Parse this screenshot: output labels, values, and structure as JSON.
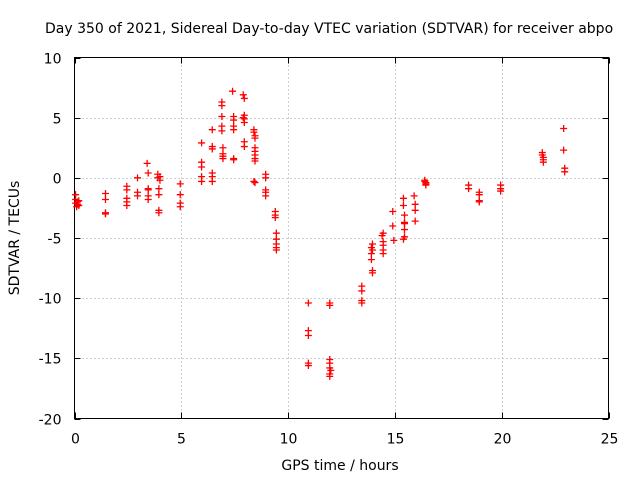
{
  "chart_data": {
    "type": "scatter",
    "title": "Day 350 of 2021, Sidereal Day-to-day VTEC variation (SDTVAR) for receiver abpo",
    "xlabel": "GPS time / hours",
    "ylabel": "SDTVAR / TECUs",
    "xlim": [
      0,
      25
    ],
    "ylim": [
      -20,
      10
    ],
    "xticks": [
      0,
      5,
      10,
      15,
      20,
      25
    ],
    "yticks": [
      -20,
      -15,
      -10,
      -5,
      0,
      5,
      10
    ],
    "xtick_labels": [
      "0",
      "5",
      "10",
      "15",
      "20",
      "25"
    ],
    "ytick_labels": [
      "-20",
      "-15",
      "-10",
      "-5",
      "0",
      "5",
      "10"
    ],
    "grid": true,
    "marker": "+",
    "marker_color": "#ff0000",
    "series": [
      {
        "name": "SDTVAR",
        "points": [
          [
            0.05,
            -1.4
          ],
          [
            0.05,
            -1.8
          ],
          [
            0.05,
            -2.1
          ],
          [
            0.1,
            -2.4
          ],
          [
            0.15,
            -2.0
          ],
          [
            0.15,
            -2.2
          ],
          [
            0.2,
            -1.9
          ],
          [
            0.2,
            -2.3
          ],
          [
            1.45,
            -1.3
          ],
          [
            1.45,
            -1.8
          ],
          [
            1.45,
            -2.9
          ],
          [
            1.45,
            -3.0
          ],
          [
            2.45,
            -0.7
          ],
          [
            2.45,
            -1.0
          ],
          [
            2.45,
            -1.7
          ],
          [
            2.45,
            -2.0
          ],
          [
            2.45,
            -2.3
          ],
          [
            2.95,
            0.0
          ],
          [
            2.95,
            -1.2
          ],
          [
            2.95,
            -1.5
          ],
          [
            3.4,
            1.2
          ],
          [
            3.45,
            0.4
          ],
          [
            3.45,
            -0.9
          ],
          [
            3.45,
            -1.0
          ],
          [
            3.45,
            -1.5
          ],
          [
            3.45,
            -1.8
          ],
          [
            3.9,
            0.3
          ],
          [
            3.9,
            0.0
          ],
          [
            3.95,
            -0.9
          ],
          [
            3.95,
            -1.4
          ],
          [
            3.95,
            -2.7
          ],
          [
            3.95,
            -2.9
          ],
          [
            4.0,
            0.1
          ],
          [
            4.0,
            -0.2
          ],
          [
            4.95,
            -0.5
          ],
          [
            4.95,
            -1.4
          ],
          [
            4.95,
            -2.1
          ],
          [
            4.95,
            -2.4
          ],
          [
            5.95,
            2.9
          ],
          [
            5.95,
            1.3
          ],
          [
            5.95,
            0.9
          ],
          [
            5.95,
            0.1
          ],
          [
            5.95,
            -0.3
          ],
          [
            6.45,
            4.0
          ],
          [
            6.45,
            2.6
          ],
          [
            6.45,
            2.4
          ],
          [
            6.45,
            0.4
          ],
          [
            6.45,
            0.1
          ],
          [
            6.45,
            -0.3
          ],
          [
            6.9,
            6.3
          ],
          [
            6.9,
            6.0
          ],
          [
            6.9,
            5.1
          ],
          [
            6.9,
            4.3
          ],
          [
            6.9,
            3.9
          ],
          [
            6.95,
            2.5
          ],
          [
            6.95,
            2.0
          ],
          [
            6.95,
            1.8
          ],
          [
            6.95,
            1.6
          ],
          [
            7.4,
            7.2
          ],
          [
            7.45,
            5.1
          ],
          [
            7.45,
            4.8
          ],
          [
            7.45,
            4.3
          ],
          [
            7.45,
            4.0
          ],
          [
            7.45,
            1.6
          ],
          [
            7.45,
            1.5
          ],
          [
            7.9,
            6.9
          ],
          [
            7.95,
            6.6
          ],
          [
            7.95,
            5.2
          ],
          [
            7.95,
            4.9
          ],
          [
            7.95,
            4.6
          ],
          [
            7.95,
            3.0
          ],
          [
            7.95,
            2.6
          ],
          [
            7.9,
            5.0
          ],
          [
            8.4,
            4.0
          ],
          [
            8.4,
            3.8
          ],
          [
            8.45,
            3.5
          ],
          [
            8.45,
            3.3
          ],
          [
            8.45,
            2.5
          ],
          [
            8.45,
            2.2
          ],
          [
            8.45,
            1.9
          ],
          [
            8.45,
            1.6
          ],
          [
            8.45,
            1.4
          ],
          [
            8.4,
            -0.3
          ],
          [
            8.45,
            -0.4
          ],
          [
            8.95,
            0.3
          ],
          [
            8.95,
            0.0
          ],
          [
            8.95,
            -1.0
          ],
          [
            8.95,
            -1.2
          ],
          [
            8.95,
            -1.5
          ],
          [
            9.4,
            -2.8
          ],
          [
            9.4,
            -3.1
          ],
          [
            9.4,
            -3.3
          ],
          [
            9.45,
            -4.6
          ],
          [
            9.45,
            -5.1
          ],
          [
            9.45,
            -5.5
          ],
          [
            9.45,
            -5.8
          ],
          [
            9.45,
            -6.0
          ],
          [
            10.95,
            -10.4
          ],
          [
            10.95,
            -12.7
          ],
          [
            10.95,
            -13.1
          ],
          [
            10.95,
            -15.4
          ],
          [
            10.95,
            -15.6
          ],
          [
            11.95,
            -10.4
          ],
          [
            11.95,
            -10.6
          ],
          [
            11.95,
            -15.1
          ],
          [
            11.95,
            -15.4
          ],
          [
            11.95,
            -15.8
          ],
          [
            11.95,
            -16.3
          ],
          [
            11.95,
            -16.5
          ],
          [
            12.0,
            -16.0
          ],
          [
            13.45,
            -9.0
          ],
          [
            13.45,
            -9.4
          ],
          [
            13.45,
            -10.2
          ],
          [
            13.45,
            -10.4
          ],
          [
            13.9,
            -5.8
          ],
          [
            13.9,
            -6.3
          ],
          [
            13.9,
            -6.8
          ],
          [
            13.95,
            -5.5
          ],
          [
            13.95,
            -6.0
          ],
          [
            13.95,
            -7.7
          ],
          [
            13.95,
            -7.9
          ],
          [
            14.4,
            -4.8
          ],
          [
            14.45,
            -4.6
          ],
          [
            14.45,
            -5.3
          ],
          [
            14.45,
            -5.6
          ],
          [
            14.45,
            -6.0
          ],
          [
            14.45,
            -6.3
          ],
          [
            14.9,
            -2.8
          ],
          [
            14.9,
            -4.0
          ],
          [
            14.95,
            -5.2
          ],
          [
            15.4,
            -1.7
          ],
          [
            15.4,
            -2.3
          ],
          [
            15.45,
            -3.1
          ],
          [
            15.45,
            -3.7
          ],
          [
            15.45,
            -4.3
          ],
          [
            15.45,
            -4.9
          ],
          [
            15.4,
            -5.1
          ],
          [
            15.45,
            -3.8
          ],
          [
            15.9,
            -1.5
          ],
          [
            15.95,
            -2.2
          ],
          [
            15.95,
            -2.7
          ],
          [
            15.95,
            -3.6
          ],
          [
            16.4,
            -0.2
          ],
          [
            16.4,
            -0.3
          ],
          [
            16.45,
            -0.4
          ],
          [
            16.45,
            -0.5
          ],
          [
            16.45,
            -0.6
          ],
          [
            18.45,
            -0.6
          ],
          [
            18.45,
            -0.9
          ],
          [
            18.95,
            -1.2
          ],
          [
            18.95,
            -1.4
          ],
          [
            18.95,
            -1.9
          ],
          [
            18.95,
            -2.0
          ],
          [
            19.95,
            -0.6
          ],
          [
            19.95,
            -0.9
          ],
          [
            19.95,
            -1.1
          ],
          [
            21.9,
            2.1
          ],
          [
            21.9,
            1.9
          ],
          [
            21.95,
            1.7
          ],
          [
            21.95,
            1.5
          ],
          [
            21.95,
            1.3
          ],
          [
            22.9,
            4.1
          ],
          [
            22.9,
            2.3
          ],
          [
            22.95,
            0.8
          ],
          [
            22.95,
            0.5
          ]
        ]
      }
    ]
  }
}
